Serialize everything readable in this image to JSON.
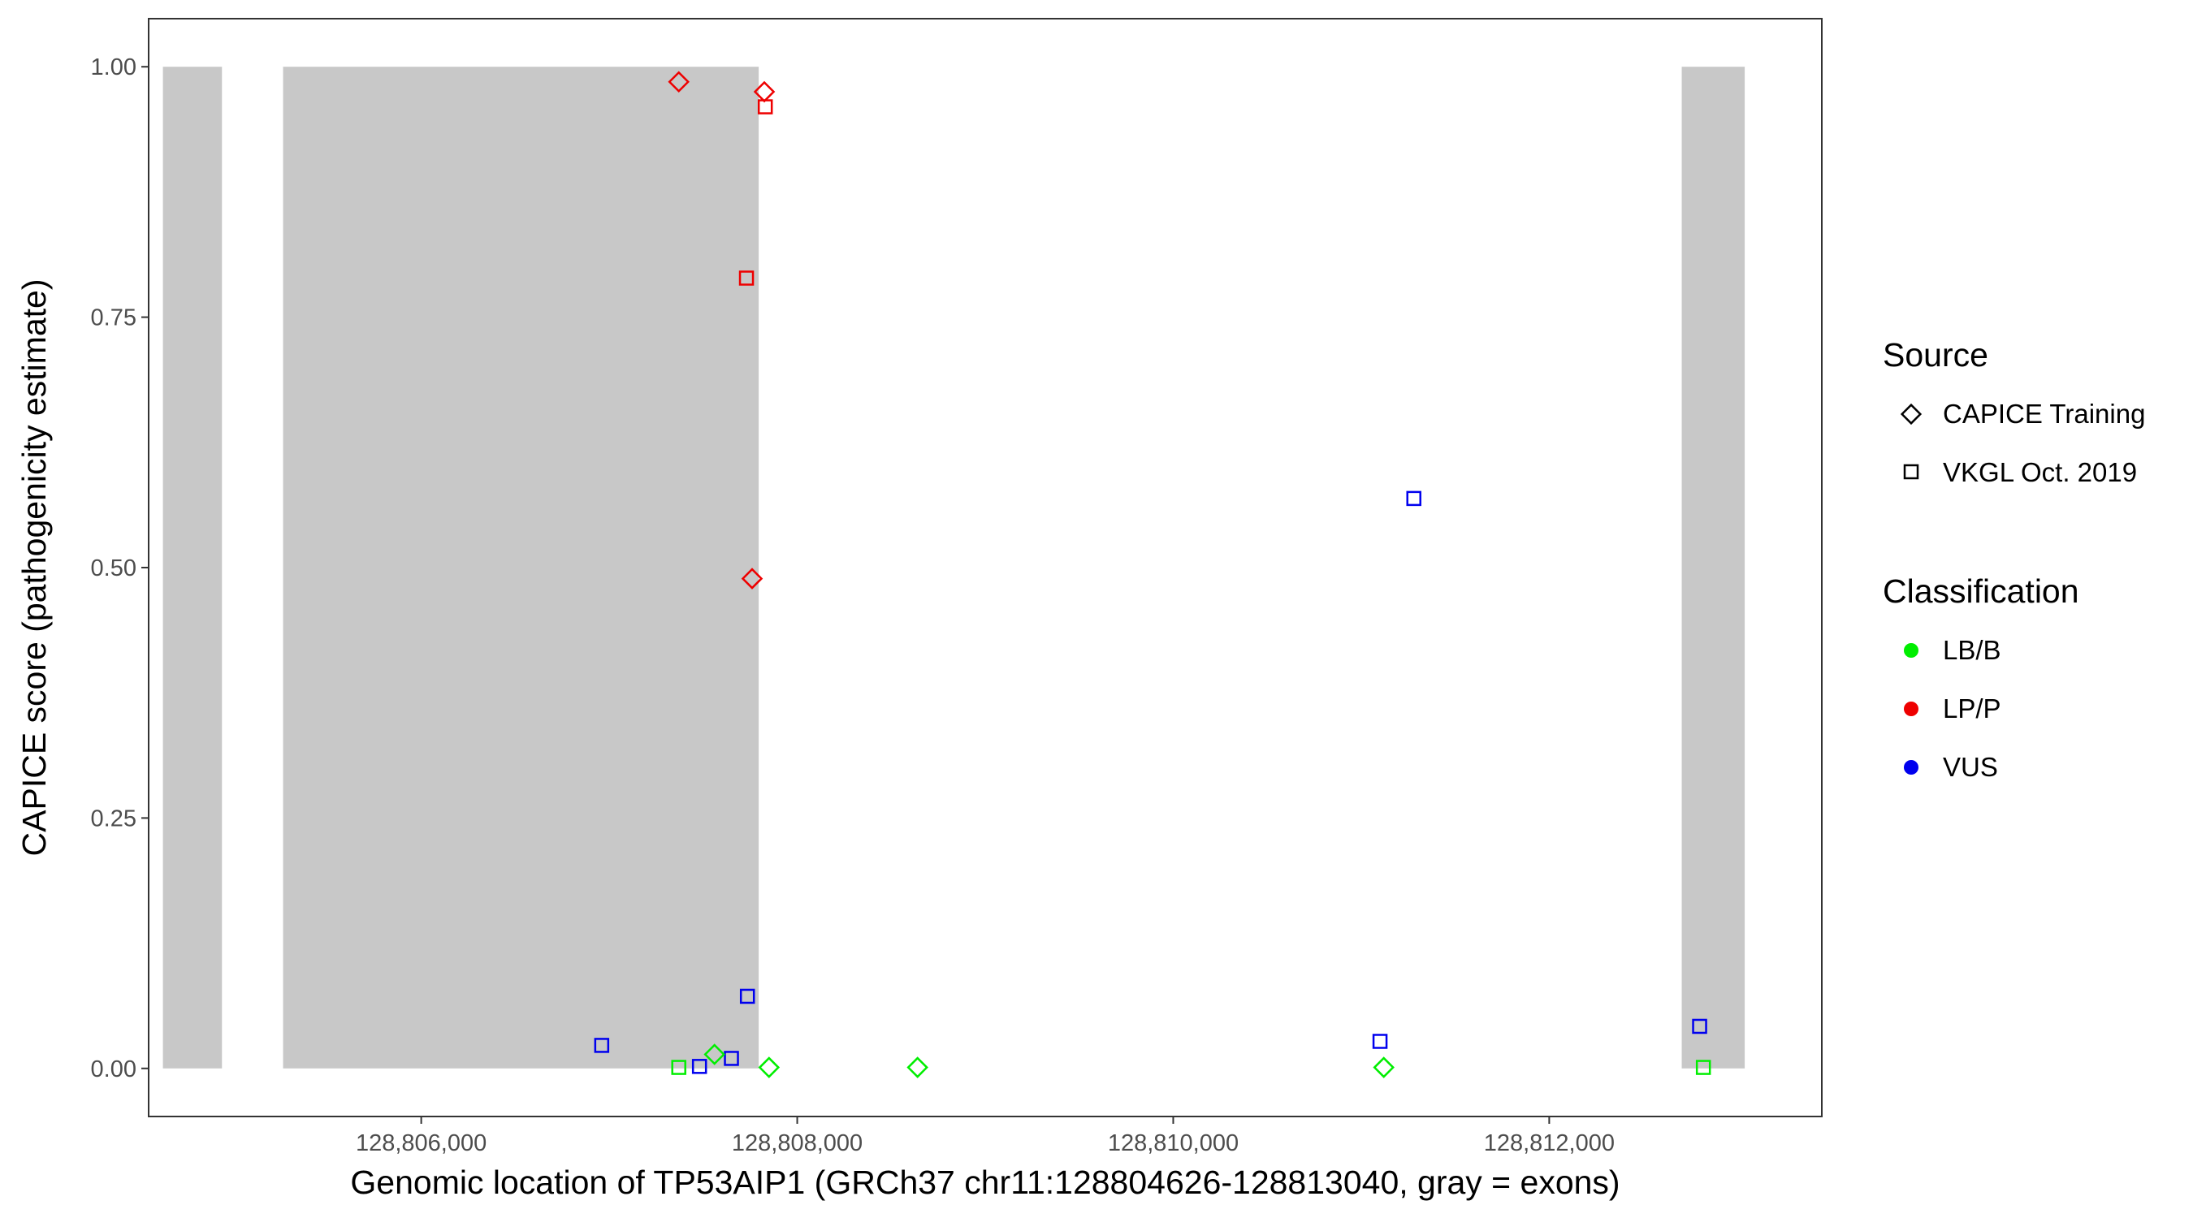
{
  "chart_data": {
    "type": "scatter",
    "xlabel": "Genomic location of TP53AIP1 (GRCh37 chr11:128804626-128813040, gray = exons)",
    "ylabel": "CAPICE score (pathogenicity estimate)",
    "xlim": [
      128804550,
      128813450
    ],
    "ylim": [
      -0.048,
      1.048
    ],
    "x_ticks": [
      128806000,
      128808000,
      128810000,
      128812000
    ],
    "x_tick_labels": [
      "128,806,000",
      "128,808,000",
      "128,810,000",
      "128,812,000"
    ],
    "y_ticks": [
      0,
      0.25,
      0.5,
      0.75,
      1.0
    ],
    "y_tick_labels": [
      "0.00",
      "0.25",
      "0.50",
      "0.75",
      "1.00"
    ],
    "grid": false,
    "exons": [
      {
        "start": 128804626,
        "end": 128804940
      },
      {
        "start": 128805265,
        "end": 128807795
      },
      {
        "start": 128812705,
        "end": 128813040
      }
    ],
    "exon_color": "#c8c8c8",
    "legend_position": "right",
    "legend": {
      "source": {
        "title": "Source",
        "items": [
          {
            "label": "CAPICE Training",
            "shape": "diamond"
          },
          {
            "label": "VKGL Oct. 2019",
            "shape": "square"
          }
        ]
      },
      "classification": {
        "title": "Classification",
        "items": [
          {
            "label": "LB/B",
            "color": "#00ee00"
          },
          {
            "label": "LP/P",
            "color": "#ee0000"
          },
          {
            "label": "VUS",
            "color": "#0000ee"
          }
        ]
      }
    },
    "points": [
      {
        "x": 128807370,
        "y": 0.985,
        "shape": "diamond",
        "cls": "LP/P"
      },
      {
        "x": 128807825,
        "y": 0.975,
        "shape": "diamond",
        "cls": "LP/P"
      },
      {
        "x": 128807830,
        "y": 0.96,
        "shape": "square",
        "cls": "LP/P"
      },
      {
        "x": 128807730,
        "y": 0.789,
        "shape": "square",
        "cls": "LP/P"
      },
      {
        "x": 128807760,
        "y": 0.489,
        "shape": "diamond",
        "cls": "LP/P"
      },
      {
        "x": 128807735,
        "y": 0.072,
        "shape": "square",
        "cls": "VUS"
      },
      {
        "x": 128806960,
        "y": 0.023,
        "shape": "square",
        "cls": "VUS"
      },
      {
        "x": 128807480,
        "y": 0.002,
        "shape": "square",
        "cls": "VUS"
      },
      {
        "x": 128807650,
        "y": 0.01,
        "shape": "square",
        "cls": "VUS"
      },
      {
        "x": 128807370,
        "y": 0.001,
        "shape": "square",
        "cls": "LB/B"
      },
      {
        "x": 128807560,
        "y": 0.014,
        "shape": "diamond",
        "cls": "LB/B"
      },
      {
        "x": 128807850,
        "y": 0.001,
        "shape": "diamond",
        "cls": "LB/B"
      },
      {
        "x": 128808640,
        "y": 0.001,
        "shape": "diamond",
        "cls": "LB/B"
      },
      {
        "x": 128811280,
        "y": 0.569,
        "shape": "square",
        "cls": "VUS"
      },
      {
        "x": 128811100,
        "y": 0.027,
        "shape": "square",
        "cls": "VUS"
      },
      {
        "x": 128811120,
        "y": 0.001,
        "shape": "diamond",
        "cls": "LB/B"
      },
      {
        "x": 128812800,
        "y": 0.042,
        "shape": "square",
        "cls": "VUS"
      },
      {
        "x": 128812820,
        "y": 0.001,
        "shape": "square",
        "cls": "LB/B"
      }
    ]
  }
}
